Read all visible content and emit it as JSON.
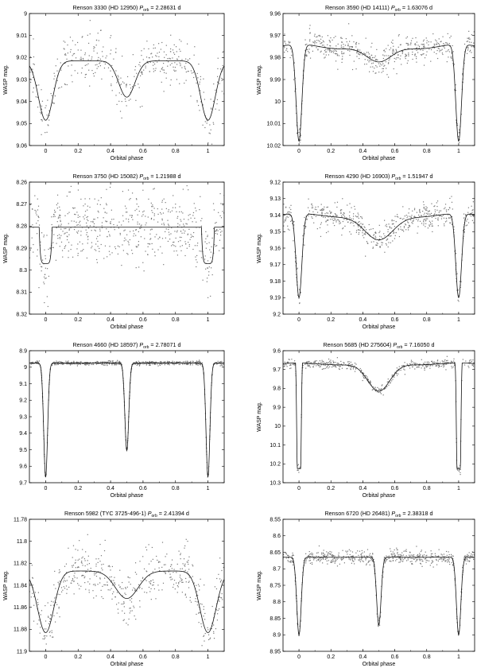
{
  "figure": {
    "xlabel": "Orbital phase",
    "ylabel": "WASP mag."
  },
  "chart_data": [
    {
      "type": "scatter",
      "title": {
        "prefix": "Renson 3330 (HD 12950) ",
        "p": "P",
        "sub": "orb",
        "suffix": " = 2.28631 d"
      },
      "xlabel": "Orbital phase",
      "ylabel": "WASP mag.",
      "xlim": [
        -0.1,
        1.1
      ],
      "ylim": [
        9.06,
        9.0
      ],
      "inverted_y": true,
      "xticks": [
        "0",
        "0.2",
        "0.4",
        "0.6",
        "0.8",
        "1"
      ],
      "yticks": [
        "9",
        "9.01",
        "9.02",
        "9.03",
        "9.04",
        "9.05",
        "9.06"
      ],
      "model": {
        "base": 9.0215,
        "primary_depth": 0.027,
        "primary_width": 0.045,
        "secondary_depth": 0.0165,
        "secondary_width": 0.05,
        "ellipsoidal": 0
      },
      "scatter_sigma": 0.006,
      "n_points": 420,
      "show_xlabel": true,
      "show_ylabel": true
    },
    {
      "type": "scatter",
      "title": {
        "prefix": "Renson 3590 (HD 14111) ",
        "p": "P",
        "sub": "orb",
        "suffix": " = 1.63076 d"
      },
      "xlabel": "Orbital phase",
      "ylabel": "WASP mag.",
      "xlim": [
        -0.1,
        1.1
      ],
      "ylim": [
        10.02,
        9.96
      ],
      "inverted_y": true,
      "xticks": [
        "0",
        "0.2",
        "0.4",
        "0.6",
        "0.8",
        "1"
      ],
      "yticks": [
        "9.96",
        "9.97",
        "9.98",
        "9.99",
        "10",
        "10.01",
        "10.02"
      ],
      "model": {
        "base": 9.974,
        "primary_depth": 0.044,
        "primary_width": 0.018,
        "secondary_depth": 0.008,
        "secondary_width": 0.08,
        "ellipsoidal": 0.004
      },
      "scatter_sigma": 0.003,
      "n_points": 560,
      "show_xlabel": true,
      "show_ylabel": true
    },
    {
      "type": "scatter",
      "title": {
        "prefix": "Renson 3750 (HD 15082) ",
        "p": "P",
        "sub": "orb",
        "suffix": " = 1.21988 d"
      },
      "xlabel": "Orbital phase",
      "ylabel": "WASP mag.",
      "xlim": [
        -0.1,
        1.1
      ],
      "ylim": [
        8.32,
        8.26
      ],
      "inverted_y": true,
      "xticks": [
        "0",
        "0.2",
        "0.4",
        "0.6",
        "0.8",
        "1"
      ],
      "yticks": [
        "8.26",
        "8.27",
        "8.28",
        "8.29",
        "8.3",
        "8.31",
        "8.32"
      ],
      "model": {
        "base": 8.2805,
        "primary_depth": 0.0165,
        "primary_width": 0.04,
        "secondary_depth": 0,
        "secondary_width": 0.05,
        "ellipsoidal": 0,
        "flat_box": true
      },
      "scatter_sigma": 0.008,
      "n_points": 620,
      "show_xlabel": true,
      "show_ylabel": true
    },
    {
      "type": "scatter",
      "title": {
        "prefix": "Renson 4290 (HD 16903) ",
        "p": "P",
        "sub": "orb",
        "suffix": " = 1.51947 d"
      },
      "xlabel": "Orbital phase",
      "ylabel": "WASP mag.",
      "xlim": [
        -0.1,
        1.1
      ],
      "ylim": [
        9.2,
        9.12
      ],
      "inverted_y": true,
      "xticks": [
        "0",
        "0.2",
        "0.4",
        "0.6",
        "0.8",
        "1"
      ],
      "yticks": [
        "9.12",
        "9.13",
        "9.14",
        "9.15",
        "9.16",
        "9.17",
        "9.18",
        "9.19",
        "9.2"
      ],
      "model": {
        "base": 9.139,
        "primary_depth": 0.051,
        "primary_width": 0.018,
        "secondary_depth": 0.016,
        "secondary_width": 0.09,
        "ellipsoidal": 0.004
      },
      "scatter_sigma": 0.004,
      "n_points": 600,
      "show_xlabel": true,
      "show_ylabel": true
    },
    {
      "type": "scatter",
      "title": {
        "prefix": "Renson 4660 (HD 18597) ",
        "p": "P",
        "sub": "orb",
        "suffix": " = 2.78071 d"
      },
      "xlabel": "Orbital phase",
      "ylabel": "WASP mag.",
      "xlim": [
        -0.1,
        1.1
      ],
      "ylim": [
        9.7,
        8.9
      ],
      "inverted_y": true,
      "xticks": [
        "0",
        "0.2",
        "0.4",
        "0.6",
        "0.8",
        "1"
      ],
      "yticks": [
        "8.9",
        "9",
        "9.1",
        "9.2",
        "9.3",
        "9.4",
        "9.5",
        "9.6",
        "9.7"
      ],
      "model": {
        "base": 8.975,
        "primary_depth": 0.69,
        "primary_width": 0.012,
        "secondary_depth": 0.53,
        "secondary_width": 0.012,
        "ellipsoidal": 0
      },
      "scatter_sigma": 0.006,
      "n_points": 700,
      "show_xlabel": true,
      "show_ylabel": false
    },
    {
      "type": "scatter",
      "title": {
        "prefix": "Renson 5685 (HD 275604) ",
        "p": "P",
        "sub": "orb",
        "suffix": " = 7.16050 d"
      },
      "xlabel": "Orbital phase",
      "ylabel": "WASP mag.",
      "xlim": [
        -0.1,
        1.1
      ],
      "ylim": [
        10.3,
        9.6
      ],
      "inverted_y": true,
      "xticks": [
        "0",
        "0.2",
        "0.4",
        "0.6",
        "0.8",
        "1"
      ],
      "yticks": [
        "9.6",
        "9.7",
        "9.8",
        "9.9",
        "10",
        "10.1",
        "10.2",
        "10.3"
      ],
      "model": {
        "base": 9.665,
        "primary_depth": 0.56,
        "primary_width": 0.022,
        "secondary_depth": 0.15,
        "secondary_width": 0.07,
        "ellipsoidal": 0.02,
        "flat_bottom": true
      },
      "scatter_sigma": 0.012,
      "n_points": 480,
      "show_xlabel": true,
      "show_ylabel": true
    },
    {
      "type": "scatter",
      "title": {
        "prefix": "Renson 5982 (TYC 3725-496-1) ",
        "p": "P",
        "sub": "orb",
        "suffix": " = 2.41394 d"
      },
      "xlabel": "Orbital phase",
      "ylabel": "WASP mag.",
      "xlim": [
        -0.1,
        1.1
      ],
      "ylim": [
        11.9,
        11.78
      ],
      "inverted_y": true,
      "xticks": [
        "0",
        "0.2",
        "0.4",
        "0.6",
        "0.8",
        "1"
      ],
      "yticks": [
        "11.78",
        "11.8",
        "11.82",
        "11.84",
        "11.86",
        "11.88",
        "11.9"
      ],
      "model": {
        "base": 11.827,
        "primary_depth": 0.056,
        "primary_width": 0.05,
        "secondary_depth": 0.025,
        "secondary_width": 0.07,
        "ellipsoidal": 0
      },
      "scatter_sigma": 0.012,
      "n_points": 520,
      "show_xlabel": true,
      "show_ylabel": true
    },
    {
      "type": "scatter",
      "title": {
        "prefix": "Renson 6720 (HD 26481) ",
        "p": "P",
        "sub": "orb",
        "suffix": " = 2.38318 d"
      },
      "xlabel": "Orbital phase",
      "ylabel": "WASP mag.",
      "xlim": [
        -0.1,
        1.1
      ],
      "ylim": [
        8.95,
        8.55
      ],
      "inverted_y": true,
      "xticks": [
        "0",
        "0.2",
        "0.4",
        "0.6",
        "0.8",
        "1"
      ],
      "yticks": [
        "8.55",
        "8.6",
        "8.65",
        "8.7",
        "8.75",
        "8.8",
        "8.85",
        "8.9",
        "8.95"
      ],
      "model": {
        "base": 8.665,
        "primary_depth": 0.235,
        "primary_width": 0.014,
        "secondary_depth": 0.205,
        "secondary_width": 0.014,
        "ellipsoidal": 0
      },
      "scatter_sigma": 0.01,
      "n_points": 640,
      "show_xlabel": true,
      "show_ylabel": true
    }
  ]
}
